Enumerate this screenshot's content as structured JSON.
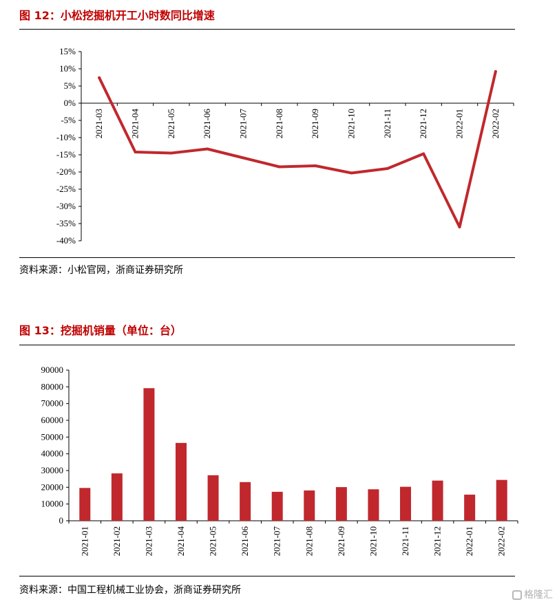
{
  "chart_data": [
    {
      "type": "line",
      "title": "图 12：小松挖掘机开工小时数同比增速",
      "source": "资料来源：小松官网，浙商证券研究所",
      "categories": [
        "2021-03",
        "2021-04",
        "2021-05",
        "2021-06",
        "2021-07",
        "2021-08",
        "2021-09",
        "2021-10",
        "2021-11",
        "2021-12",
        "2022-01",
        "2022-02"
      ],
      "values": [
        7.4,
        -14.2,
        -14.5,
        -13.3,
        -15.9,
        -18.5,
        -18.2,
        -20.3,
        -19.0,
        -14.7,
        -36.0,
        9.2
      ],
      "ylim": [
        -40,
        15
      ],
      "yticks": [
        "15%",
        "10%",
        "5%",
        "0%",
        "-5%",
        "-10%",
        "-15%",
        "-20%",
        "-25%",
        "-30%",
        "-35%",
        "-40%"
      ],
      "color": "#c0282d"
    },
    {
      "type": "bar",
      "title": "图 13：挖掘机销量（单位：台）",
      "source": "资料来源：中国工程机械工业协会，浙商证券研究所",
      "categories": [
        "2021-01",
        "2021-02",
        "2021-03",
        "2021-04",
        "2021-05",
        "2021-06",
        "2021-07",
        "2021-08",
        "2021-09",
        "2021-10",
        "2021-11",
        "2021-12",
        "2022-01",
        "2022-02"
      ],
      "values": [
        19600,
        28300,
        79200,
        46500,
        27200,
        23100,
        17300,
        18100,
        20100,
        18800,
        20300,
        24000,
        15600,
        24400
      ],
      "ylim": [
        0,
        90000
      ],
      "yticks": [
        "90000",
        "80000",
        "70000",
        "60000",
        "50000",
        "40000",
        "30000",
        "20000",
        "10000",
        "0"
      ],
      "color": "#c0282d"
    }
  ],
  "watermark": "格隆汇"
}
